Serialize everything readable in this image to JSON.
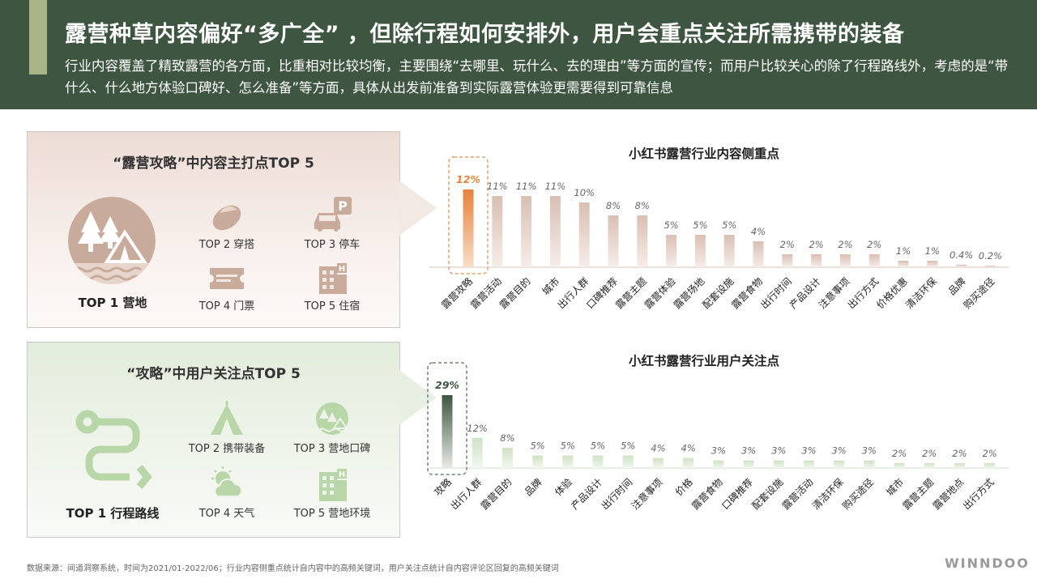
{
  "title": "露营种草内容偏好“多广全” ，但除行程如何安排外，用户会重点关注所需携带的装备",
  "subtitle": "行业内容覆盖了精致露营的各方面，比重相对比较均衡，主要围绕“去哪里、玩什么、去的理由”等方面的宣传；而用户比较关心的除了行程路线外，考虑的是“带什么、什么地方体验口碑好、怎么准备”等方面，具体从出发前准备到实际露营体验更需要得到可靠信息",
  "panels": {
    "content": {
      "title": "“露营攻略”中内容主打点TOP 5",
      "top1": "TOP 1 营地",
      "items": [
        "TOP 2 穿搭",
        "TOP 3 停车",
        "TOP 4 门票",
        "TOP 5 住宿"
      ]
    },
    "user": {
      "title": "“攻略”中用户关注点TOP 5",
      "top1": "TOP 1 行程路线",
      "items": [
        "TOP 2 携带装备",
        "TOP 3 营地口碑",
        "TOP 4 天气",
        "TOP 5 营地环境"
      ]
    }
  },
  "colors": {
    "header_bg": "#3e5641",
    "accent_gold": "#a9b487",
    "highlight_orange": "#e8823a",
    "highlight_green": "#3e5641",
    "bar_brown": "#d9bfb3",
    "bar_green": "#cfe2c4",
    "icon_brown": "#c9ab9c",
    "icon_green": "#b9d6a8"
  },
  "chart_data": [
    {
      "type": "bar",
      "title": "小红书露营行业内容侧重点",
      "categories": [
        "露营攻略",
        "露营活动",
        "露营目的",
        "城市",
        "出行人群",
        "口碑推荐",
        "露营主题",
        "露营体验",
        "露营场地",
        "配套设施",
        "露营食物",
        "出行时间",
        "产品设计",
        "注意事项",
        "出行方式",
        "价格优惠",
        "清洁环保",
        "品牌",
        "购买途径"
      ],
      "values": [
        12,
        11,
        11,
        11,
        10,
        8,
        8,
        5,
        5,
        5,
        4,
        2,
        2,
        2,
        2,
        1,
        1,
        0.4,
        0.2
      ],
      "labels": [
        "12%",
        "11%",
        "11%",
        "11%",
        "10%",
        "8%",
        "8%",
        "5%",
        "5%",
        "5%",
        "4%",
        "2%",
        "2%",
        "2%",
        "2%",
        "1%",
        "1%",
        "0.4%",
        "0.2%"
      ],
      "unit": "%",
      "highlight_index": 0
    },
    {
      "type": "bar",
      "title": "小红书露营行业用户关注点",
      "categories": [
        "攻略",
        "出行人群",
        "露营目的",
        "品牌",
        "体验",
        "产品设计",
        "出行时间",
        "注意事项",
        "价格",
        "露营食物",
        "口碑推荐",
        "配套设施",
        "露营活动",
        "清洁环保",
        "购买途径",
        "城市",
        "露营主题",
        "露营地点",
        "出行方式"
      ],
      "values": [
        29,
        12,
        8,
        5,
        5,
        5,
        5,
        4,
        4,
        3,
        3,
        3,
        3,
        3,
        3,
        2,
        2,
        2,
        2
      ],
      "labels": [
        "29%",
        "12%",
        "8%",
        "5%",
        "5%",
        "5%",
        "5%",
        "4%",
        "4%",
        "3%",
        "3%",
        "3%",
        "3%",
        "3%",
        "3%",
        "2%",
        "2%",
        "2%",
        "2%"
      ],
      "unit": "%",
      "highlight_index": 0
    }
  ],
  "footer": {
    "note": "数据来源：间道洞察系统，时间为2021/01-2022/06；行业内容侧重点统计自内容中的高频关键词，用户关注点统计自内容评论区回复的高频关键词",
    "brand": "WINNDOO"
  }
}
